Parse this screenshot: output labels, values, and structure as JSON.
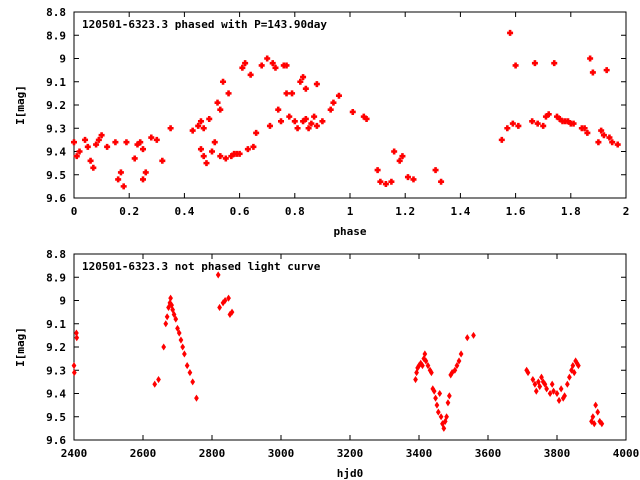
{
  "chart_data": [
    {
      "type": "scatter",
      "title": "120501-6323.3 phased with P=143.90day",
      "xlabel": "phase",
      "ylabel": "I[mag]",
      "xlim": [
        0,
        2
      ],
      "ylim": [
        9.6,
        8.8
      ],
      "y_inverted": true,
      "grid": false,
      "x_ticks": [
        "0",
        "0.2",
        "0.4",
        "0.6",
        "0.8",
        "1",
        "1.2",
        "1.4",
        "1.6",
        "1.8",
        "2"
      ],
      "y_ticks": [
        "8.8",
        "8.9",
        "9",
        "9.1",
        "9.2",
        "9.3",
        "9.4",
        "9.5",
        "9.6"
      ],
      "marker": "plus",
      "color": "#ff0000",
      "points": [
        [
          0.0,
          9.36
        ],
        [
          0.01,
          9.42
        ],
        [
          0.02,
          9.4
        ],
        [
          0.04,
          9.35
        ],
        [
          0.05,
          9.38
        ],
        [
          0.06,
          9.44
        ],
        [
          0.07,
          9.47
        ],
        [
          0.08,
          9.37
        ],
        [
          0.09,
          9.35
        ],
        [
          0.1,
          9.33
        ],
        [
          0.12,
          9.38
        ],
        [
          0.15,
          9.36
        ],
        [
          0.16,
          9.52
        ],
        [
          0.17,
          9.49
        ],
        [
          0.18,
          9.55
        ],
        [
          0.19,
          9.36
        ],
        [
          0.22,
          9.43
        ],
        [
          0.23,
          9.37
        ],
        [
          0.24,
          9.36
        ],
        [
          0.25,
          9.39
        ],
        [
          0.25,
          9.52
        ],
        [
          0.26,
          9.49
        ],
        [
          0.28,
          9.34
        ],
        [
          0.3,
          9.35
        ],
        [
          0.32,
          9.44
        ],
        [
          0.35,
          9.3
        ],
        [
          0.43,
          9.31
        ],
        [
          0.45,
          9.29
        ],
        [
          0.46,
          9.27
        ],
        [
          0.46,
          9.39
        ],
        [
          0.47,
          9.42
        ],
        [
          0.47,
          9.3
        ],
        [
          0.48,
          9.45
        ],
        [
          0.49,
          9.26
        ],
        [
          0.5,
          9.4
        ],
        [
          0.51,
          9.36
        ],
        [
          0.52,
          9.19
        ],
        [
          0.53,
          9.22
        ],
        [
          0.53,
          9.42
        ],
        [
          0.54,
          9.1
        ],
        [
          0.55,
          9.43
        ],
        [
          0.56,
          9.15
        ],
        [
          0.57,
          9.42
        ],
        [
          0.58,
          9.41
        ],
        [
          0.59,
          9.41
        ],
        [
          0.6,
          9.41
        ],
        [
          0.61,
          9.04
        ],
        [
          0.62,
          9.02
        ],
        [
          0.63,
          9.39
        ],
        [
          0.64,
          9.07
        ],
        [
          0.65,
          9.38
        ],
        [
          0.66,
          9.32
        ],
        [
          0.68,
          9.03
        ],
        [
          0.7,
          9.0
        ],
        [
          0.71,
          9.29
        ],
        [
          0.72,
          9.02
        ],
        [
          0.73,
          9.04
        ],
        [
          0.74,
          9.22
        ],
        [
          0.75,
          9.27
        ],
        [
          0.76,
          9.03
        ],
        [
          0.77,
          9.15
        ],
        [
          0.77,
          9.03
        ],
        [
          0.78,
          9.25
        ],
        [
          0.79,
          9.15
        ],
        [
          0.8,
          9.27
        ],
        [
          0.81,
          9.3
        ],
        [
          0.82,
          9.1
        ],
        [
          0.83,
          9.27
        ],
        [
          0.83,
          9.08
        ],
        [
          0.84,
          9.13
        ],
        [
          0.84,
          9.26
        ],
        [
          0.85,
          9.3
        ],
        [
          0.86,
          9.28
        ],
        [
          0.87,
          9.25
        ],
        [
          0.88,
          9.29
        ],
        [
          0.88,
          9.11
        ],
        [
          0.9,
          9.27
        ],
        [
          0.93,
          9.22
        ],
        [
          0.94,
          9.19
        ],
        [
          0.96,
          9.16
        ],
        [
          1.01,
          9.23
        ],
        [
          1.05,
          9.25
        ],
        [
          1.06,
          9.26
        ],
        [
          1.1,
          9.48
        ],
        [
          1.11,
          9.53
        ],
        [
          1.13,
          9.54
        ],
        [
          1.15,
          9.53
        ],
        [
          1.16,
          9.4
        ],
        [
          1.18,
          9.44
        ],
        [
          1.19,
          9.42
        ],
        [
          1.21,
          9.51
        ],
        [
          1.23,
          9.52
        ],
        [
          1.31,
          9.48
        ],
        [
          1.33,
          9.53
        ],
        [
          1.55,
          9.35
        ],
        [
          1.57,
          9.3
        ],
        [
          1.58,
          8.89
        ],
        [
          1.59,
          9.28
        ],
        [
          1.6,
          9.03
        ],
        [
          1.61,
          9.29
        ],
        [
          1.66,
          9.27
        ],
        [
          1.67,
          9.02
        ],
        [
          1.68,
          9.28
        ],
        [
          1.7,
          9.29
        ],
        [
          1.71,
          9.25
        ],
        [
          1.72,
          9.24
        ],
        [
          1.74,
          9.02
        ],
        [
          1.75,
          9.25
        ],
        [
          1.76,
          9.26
        ],
        [
          1.77,
          9.27
        ],
        [
          1.78,
          9.27
        ],
        [
          1.79,
          9.27
        ],
        [
          1.8,
          9.28
        ],
        [
          1.81,
          9.28
        ],
        [
          1.84,
          9.3
        ],
        [
          1.85,
          9.3
        ],
        [
          1.86,
          9.32
        ],
        [
          1.87,
          9.0
        ],
        [
          1.88,
          9.06
        ],
        [
          1.9,
          9.36
        ],
        [
          1.91,
          9.31
        ],
        [
          1.92,
          9.33
        ],
        [
          1.93,
          9.05
        ],
        [
          1.94,
          9.34
        ],
        [
          1.95,
          9.36
        ],
        [
          1.97,
          9.37
        ]
      ]
    },
    {
      "type": "scatter",
      "title": "120501-6323.3 not phased light curve",
      "xlabel": "hjd0",
      "ylabel": "I[mag]",
      "xlim": [
        2400,
        4000
      ],
      "ylim": [
        9.6,
        8.8
      ],
      "y_inverted": true,
      "grid": false,
      "x_ticks": [
        "2400",
        "2600",
        "2800",
        "3000",
        "3200",
        "3400",
        "3600",
        "3800",
        "4000"
      ],
      "y_ticks": [
        "8.8",
        "8.9",
        "9",
        "9.1",
        "9.2",
        "9.3",
        "9.4",
        "9.5",
        "9.6"
      ],
      "marker": "diamond",
      "color": "#ff0000",
      "points": [
        [
          2400,
          9.28
        ],
        [
          2401,
          9.31
        ],
        [
          2407,
          9.14
        ],
        [
          2408,
          9.16
        ],
        [
          2634,
          9.36
        ],
        [
          2645,
          9.34
        ],
        [
          2660,
          9.2
        ],
        [
          2666,
          9.1
        ],
        [
          2670,
          9.07
        ],
        [
          2674,
          9.03
        ],
        [
          2678,
          9.01
        ],
        [
          2680,
          8.99
        ],
        [
          2683,
          9.02
        ],
        [
          2686,
          9.04
        ],
        [
          2690,
          9.06
        ],
        [
          2695,
          9.08
        ],
        [
          2700,
          9.12
        ],
        [
          2705,
          9.14
        ],
        [
          2710,
          9.17
        ],
        [
          2715,
          9.2
        ],
        [
          2720,
          9.23
        ],
        [
          2728,
          9.28
        ],
        [
          2736,
          9.31
        ],
        [
          2744,
          9.35
        ],
        [
          2755,
          9.42
        ],
        [
          2818,
          8.89
        ],
        [
          2822,
          9.03
        ],
        [
          2832,
          9.01
        ],
        [
          2838,
          9.0
        ],
        [
          2848,
          8.99
        ],
        [
          2852,
          9.06
        ],
        [
          2858,
          9.05
        ],
        [
          3390,
          9.34
        ],
        [
          3393,
          9.31
        ],
        [
          3396,
          9.29
        ],
        [
          3400,
          9.28
        ],
        [
          3405,
          9.27
        ],
        [
          3410,
          9.28
        ],
        [
          3414,
          9.25
        ],
        [
          3417,
          9.23
        ],
        [
          3420,
          9.26
        ],
        [
          3426,
          9.28
        ],
        [
          3432,
          9.3
        ],
        [
          3436,
          9.31
        ],
        [
          3440,
          9.38
        ],
        [
          3444,
          9.39
        ],
        [
          3448,
          9.42
        ],
        [
          3452,
          9.45
        ],
        [
          3456,
          9.48
        ],
        [
          3460,
          9.4
        ],
        [
          3464,
          9.5
        ],
        [
          3468,
          9.53
        ],
        [
          3472,
          9.55
        ],
        [
          3476,
          9.52
        ],
        [
          3480,
          9.5
        ],
        [
          3484,
          9.44
        ],
        [
          3488,
          9.41
        ],
        [
          3492,
          9.32
        ],
        [
          3496,
          9.31
        ],
        [
          3504,
          9.3
        ],
        [
          3510,
          9.28
        ],
        [
          3516,
          9.26
        ],
        [
          3522,
          9.23
        ],
        [
          3540,
          9.16
        ],
        [
          3558,
          9.15
        ],
        [
          3712,
          9.3
        ],
        [
          3716,
          9.31
        ],
        [
          3730,
          9.34
        ],
        [
          3736,
          9.36
        ],
        [
          3740,
          9.39
        ],
        [
          3746,
          9.35
        ],
        [
          3750,
          9.37
        ],
        [
          3755,
          9.33
        ],
        [
          3760,
          9.35
        ],
        [
          3765,
          9.36
        ],
        [
          3770,
          9.38
        ],
        [
          3780,
          9.4
        ],
        [
          3786,
          9.36
        ],
        [
          3790,
          9.39
        ],
        [
          3800,
          9.4
        ],
        [
          3806,
          9.43
        ],
        [
          3812,
          9.38
        ],
        [
          3818,
          9.42
        ],
        [
          3822,
          9.41
        ],
        [
          3830,
          9.36
        ],
        [
          3836,
          9.33
        ],
        [
          3842,
          9.3
        ],
        [
          3846,
          9.28
        ],
        [
          3850,
          9.31
        ],
        [
          3854,
          9.26
        ],
        [
          3858,
          9.27
        ],
        [
          3862,
          9.28
        ],
        [
          3900,
          9.52
        ],
        [
          3904,
          9.5
        ],
        [
          3908,
          9.53
        ],
        [
          3912,
          9.45
        ],
        [
          3918,
          9.48
        ],
        [
          3924,
          9.52
        ],
        [
          3930,
          9.53
        ]
      ]
    }
  ]
}
